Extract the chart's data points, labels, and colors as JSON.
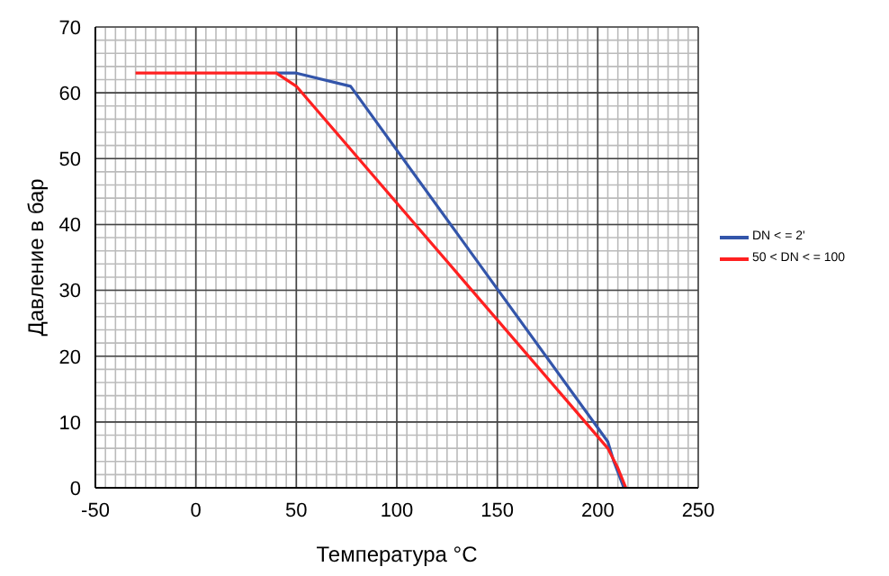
{
  "chart_data": {
    "type": "line",
    "xlabel": "Температура  °C",
    "ylabel": "Давление в бар",
    "xlim": [
      -50,
      250
    ],
    "xticks": [
      -50,
      0,
      50,
      100,
      150,
      200,
      250
    ],
    "ylim": [
      0,
      70
    ],
    "yticks": [
      0,
      10,
      20,
      30,
      40,
      50,
      60,
      70
    ],
    "grid": true,
    "legend": "right",
    "marker": "none",
    "line_style": "solid",
    "series": [
      {
        "name": "DN < = 2'",
        "color": "#3355aa",
        "x": [
          40,
          50,
          77,
          205,
          208,
          213
        ],
        "values": [
          63,
          63,
          61,
          7,
          4,
          0
        ]
      },
      {
        "name": "50 < DN < = 100",
        "color": "#ff2020",
        "x": [
          -30,
          40,
          50,
          205,
          210,
          214
        ],
        "values": [
          63,
          63,
          61,
          6,
          3,
          0
        ]
      }
    ]
  }
}
